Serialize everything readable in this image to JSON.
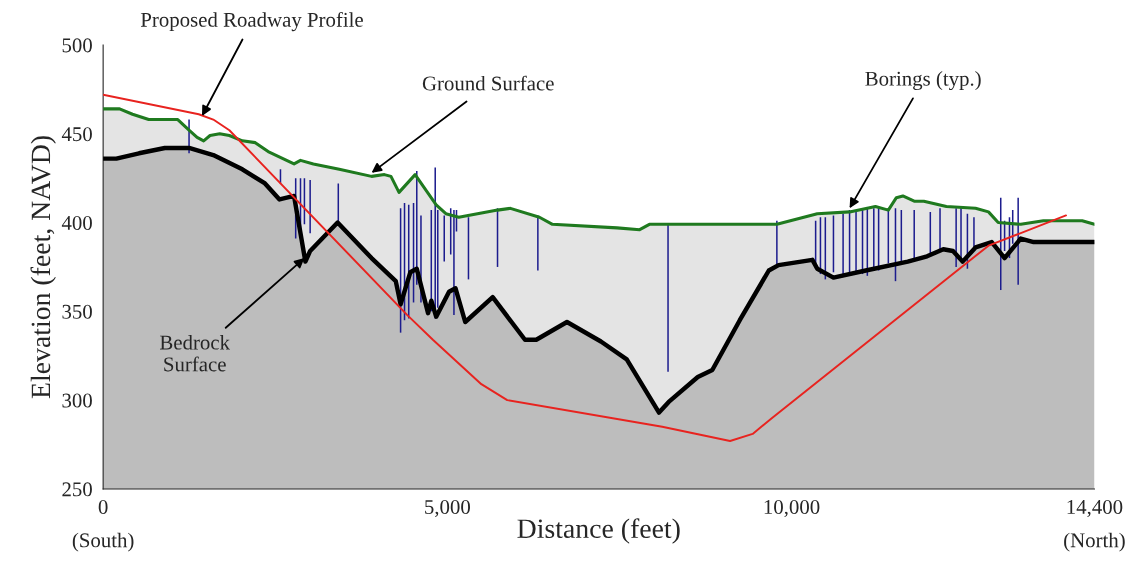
{
  "chart_data": {
    "type": "line",
    "xlabel": "Distance (feet)",
    "ylabel": "Elevation (feet, NAVD)",
    "xlim": [
      0,
      14400
    ],
    "ylim": [
      250,
      500
    ],
    "xticks": [
      {
        "value": 0,
        "label": "0\n(South)"
      },
      {
        "value": 5000,
        "label": "5,000"
      },
      {
        "value": 10000,
        "label": "10,000"
      },
      {
        "value": 14400,
        "label": "14,400\n(North)"
      }
    ],
    "yticks": [
      250,
      300,
      350,
      400,
      450,
      500
    ],
    "grid": false,
    "marker": "none",
    "line_style": "solid",
    "series": [
      {
        "type": "area",
        "color": "#1f7a1f",
        "x": [
          0,
          239,
          427,
          662,
          1084,
          1248,
          1365,
          1460,
          1553,
          1693,
          1834,
          2022,
          2210,
          2397,
          2773,
          2867,
          3054,
          3430,
          3899,
          4086,
          4181,
          4298,
          4532,
          4838,
          4979,
          5166,
          5729,
          5916,
          6338,
          6527,
          7465,
          7794,
          7935,
          8966,
          9787,
          10374,
          10843,
          11219,
          11406,
          11523,
          11617,
          11782,
          11922,
          12250,
          12673,
          12861,
          13002,
          13330,
          13658,
          13940,
          14222,
          14400
        ],
        "values": [
          464,
          464,
          461,
          458,
          458,
          452,
          448,
          446,
          449,
          450,
          449,
          446,
          445,
          440,
          433,
          435,
          433,
          430,
          426,
          427,
          426,
          417,
          427,
          410,
          405,
          403,
          407,
          408,
          403,
          399,
          397,
          396,
          399,
          399,
          399,
          405,
          406,
          409,
          407,
          414,
          415,
          412,
          412,
          409,
          408,
          406,
          400,
          399,
          401,
          401,
          401,
          399
        ]
      },
      {
        "type": "area",
        "color": "#000000",
        "x": [
          0,
          192,
          521,
          896,
          1248,
          1600,
          2022,
          2351,
          2562,
          2773,
          2938,
          3007,
          3406,
          3899,
          4251,
          4321,
          4462,
          4556,
          4720,
          4767,
          4838,
          5025,
          5119,
          5260,
          5659,
          6128,
          6292,
          6738,
          7231,
          7606,
          8075,
          8216,
          8638,
          8849,
          9248,
          9670,
          9811,
          9975,
          10303,
          10374,
          10609,
          11078,
          11688,
          11969,
          12204,
          12345,
          12485,
          12673,
          12908,
          13095,
          13330,
          13517,
          14400
        ],
        "values": [
          436,
          436,
          439,
          442,
          442,
          438,
          430,
          422,
          413,
          415,
          378,
          384,
          400,
          380,
          367,
          354,
          372,
          374,
          349,
          356,
          347,
          361,
          363,
          344,
          358,
          334,
          334,
          344,
          333,
          323,
          293,
          299,
          313,
          317,
          345,
          373,
          376,
          377,
          379,
          374,
          369,
          373,
          378,
          381,
          385,
          384,
          378,
          386,
          389,
          380,
          391,
          389,
          389
        ]
      },
      {
        "type": "bar",
        "color": "#1c1c8e",
        "x": [
          1248,
          2576,
          2797,
          2867,
          2924,
          3007,
          3416,
          4321,
          4378,
          4439,
          4509,
          4556,
          4617,
          4767,
          4824,
          4861,
          4955,
          5049,
          5096,
          5133,
          5307,
          5729,
          6315,
          8206,
          9787,
          10350,
          10420,
          10491,
          10609,
          10749,
          10843,
          10937,
          11031,
          11101,
          11195,
          11265,
          11406,
          11510,
          11595,
          11782,
          12016,
          12157,
          12391,
          12462,
          12555,
          12650,
          13039,
          13095,
          13166,
          13213,
          13292
        ],
        "base": [
          439,
          422,
          391,
          392,
          399,
          394,
          399,
          338,
          345,
          346,
          355,
          365,
          355,
          350,
          346,
          352,
          378,
          382,
          348,
          395,
          368,
          375,
          373,
          316,
          376,
          374,
          371,
          368,
          372,
          371,
          370,
          372,
          371,
          370,
          374,
          373,
          377,
          367,
          377,
          378,
          382,
          384,
          375,
          378,
          374,
          386,
          362,
          384,
          380,
          388,
          365
        ],
        "values": [
          19,
          8,
          34,
          33,
          26,
          30,
          23,
          70,
          66,
          64,
          56,
          64,
          49,
          57,
          85,
          55,
          26,
          26,
          59,
          12,
          35,
          33,
          31,
          83,
          25,
          27,
          32,
          35,
          32,
          34,
          37,
          35,
          36,
          38,
          34,
          36,
          30,
          41,
          30,
          29,
          24,
          24,
          33,
          31,
          31,
          17,
          52,
          17,
          23,
          19,
          49
        ]
      },
      {
        "color": "#e8231f",
        "x": [
          0,
          1389,
          1600,
          1834,
          4415,
          4790,
          5494,
          5870,
          8122,
          9107,
          9435,
          9717,
          12861,
          13987
        ],
        "values": [
          472,
          461,
          458,
          452,
          348,
          334,
          309,
          300,
          285,
          277,
          281,
          290,
          387,
          404
        ]
      }
    ],
    "annotations": [
      {
        "text": "Proposed Roadway Profile",
        "x": 1436,
        "y": 460
      },
      {
        "text": "Ground Surface",
        "x": 3899,
        "y": 428
      },
      {
        "text": "Borings (typ.)",
        "x": 10843,
        "y": 408
      },
      {
        "text": "Bedrock\nSurface",
        "x": 2924,
        "y": 380
      }
    ]
  }
}
